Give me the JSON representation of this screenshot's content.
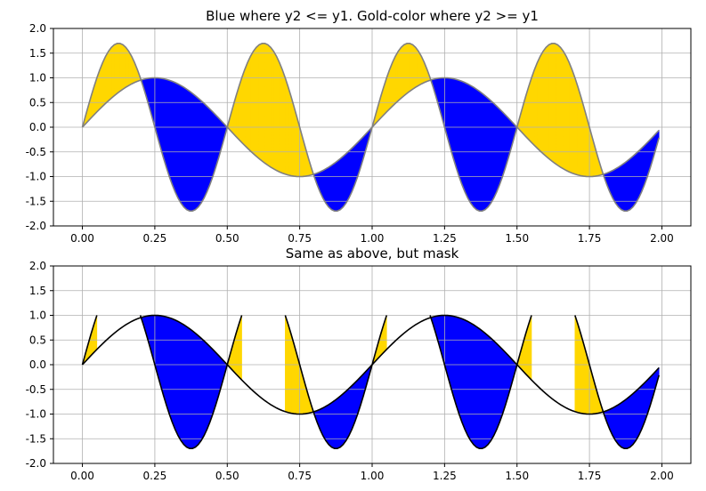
{
  "chart_data": [
    {
      "type": "area",
      "title": "Blue where y2 <= y1. Gold-color where y2 >= y1",
      "xlabel": "",
      "ylabel": "",
      "xlim": [
        -0.1,
        2.1
      ],
      "ylim": [
        -2.0,
        2.0
      ],
      "grid": true,
      "xticks": [
        "0.00",
        "0.25",
        "0.50",
        "0.75",
        "1.00",
        "1.25",
        "1.50",
        "1.75",
        "2.00"
      ],
      "yticks": [
        "-2.0",
        "-1.5",
        "-1.0",
        "-0.5",
        "0.0",
        "0.5",
        "1.0",
        "1.5",
        "2.0"
      ],
      "x_range": [
        0.0,
        1.99
      ],
      "x_step": 0.01,
      "y1": "sin(2*pi*x)",
      "y2": "1.7*sin(4*pi*x)",
      "series": [
        {
          "values": [
            0.0,
            1.0,
            0.0,
            -1.0,
            0.0
          ]
        },
        {
          "values": [
            0.0,
            1.7,
            0.0,
            -1.7,
            0.0
          ]
        }
      ],
      "line_color": "#808080",
      "mask": false,
      "fill_colors": {
        "y2_le_y1": "#0000ff",
        "y2_ge_y1": "#ffd700"
      }
    },
    {
      "type": "area",
      "title": "Same as above, but mask",
      "xlabel": "",
      "ylabel": "",
      "xlim": [
        -0.1,
        2.1
      ],
      "ylim": [
        -2.0,
        2.0
      ],
      "grid": true,
      "xticks": [
        "0.00",
        "0.25",
        "0.50",
        "0.75",
        "1.00",
        "1.25",
        "1.50",
        "1.75",
        "2.00"
      ],
      "yticks": [
        "-2.0",
        "-1.5",
        "-1.0",
        "-0.5",
        "0.0",
        "0.5",
        "1.0",
        "1.5",
        "2.0"
      ],
      "x_range": [
        0.0,
        1.99
      ],
      "x_step": 0.01,
      "y1": "sin(2*pi*x)",
      "y2": "1.7*sin(4*pi*x), masked where > 1.0",
      "mask_above": 1.0,
      "line_color": "#000000",
      "mask": true,
      "fill_colors": {
        "y2_le_y1": "#0000ff",
        "y2_ge_y1": "#ffd700"
      }
    }
  ]
}
